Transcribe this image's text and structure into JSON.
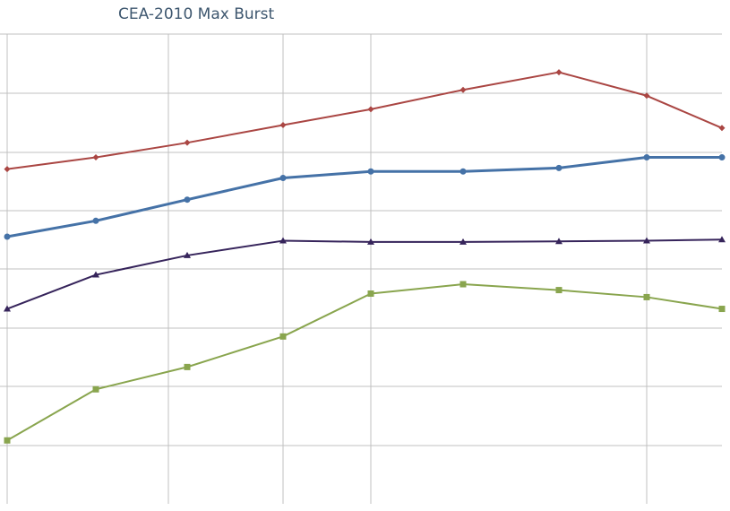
{
  "chart_data": {
    "type": "line",
    "title": "CEA-2010 Max Burst",
    "xlabel": "",
    "ylabel": "",
    "x_scale": "log",
    "x": [
      20,
      25,
      31.5,
      40,
      50,
      63,
      80,
      100,
      125
    ],
    "series": [
      {
        "color": "#aa4643",
        "marker": "diamond",
        "line_width": 2,
        "values": [
          7.7,
          7.9,
          8.15,
          8.45,
          8.72,
          9.05,
          9.35,
          8.95,
          8.4
        ]
      },
      {
        "color": "#4572a7",
        "marker": "circle",
        "line_width": 3,
        "values": [
          6.55,
          6.82,
          7.18,
          7.55,
          7.66,
          7.66,
          7.72,
          7.9,
          7.9
        ]
      },
      {
        "color": "#36245b",
        "marker": "triangle",
        "line_width": 2,
        "values": [
          5.32,
          5.9,
          6.23,
          6.48,
          6.46,
          6.46,
          6.47,
          6.48,
          6.5
        ]
      },
      {
        "color": "#89a54e",
        "marker": "square",
        "line_width": 2,
        "values": [
          3.08,
          3.95,
          4.33,
          4.85,
          5.58,
          5.74,
          5.64,
          5.52,
          5.32
        ]
      }
    ],
    "grid": true,
    "legend": "none"
  }
}
